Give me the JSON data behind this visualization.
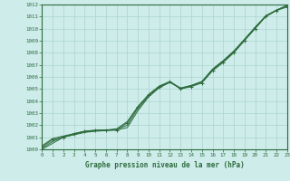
{
  "title": "Graphe pression niveau de la mer (hPa)",
  "background_color": "#cdecea",
  "grid_color": "#b0d8d4",
  "line_color": "#2d6b3c",
  "xmin": 0,
  "xmax": 23,
  "ymin": 1000,
  "ymax": 1012,
  "yticks": [
    1000,
    1001,
    1002,
    1003,
    1004,
    1005,
    1006,
    1007,
    1008,
    1009,
    1010,
    1011,
    1012
  ],
  "xticks": [
    0,
    1,
    2,
    3,
    4,
    5,
    6,
    7,
    8,
    9,
    10,
    11,
    12,
    13,
    14,
    15,
    16,
    17,
    18,
    19,
    20,
    21,
    22,
    23
  ],
  "series": [
    {
      "x": [
        0,
        1,
        2,
        3,
        4,
        5,
        6,
        7,
        8,
        9,
        10,
        11,
        12,
        13,
        14,
        15,
        16,
        17,
        18,
        19,
        20,
        21,
        22,
        23
      ],
      "y": [
        1000.2,
        1000.8,
        1001.0,
        1001.3,
        1001.5,
        1001.6,
        1001.6,
        1001.6,
        1002.2,
        1003.5,
        1004.5,
        1005.2,
        1005.6,
        1005.0,
        1005.2,
        1005.5,
        1006.5,
        1007.2,
        1008.0,
        1009.0,
        1010.0,
        1011.0,
        1011.5,
        1011.8
      ],
      "marker": "+"
    },
    {
      "x": [
        0,
        1,
        2,
        3,
        4,
        5,
        6,
        7,
        8,
        9,
        10,
        11,
        12,
        13,
        14,
        15,
        16,
        17,
        18,
        19,
        20,
        21,
        22,
        23
      ],
      "y": [
        1000.0,
        1000.5,
        1001.0,
        1001.2,
        1001.4,
        1001.5,
        1001.55,
        1001.6,
        1001.8,
        1003.2,
        1004.35,
        1005.1,
        1005.55,
        1005.05,
        1005.28,
        1005.6,
        1006.65,
        1007.35,
        1008.15,
        1009.1,
        1010.1,
        1011.05,
        1011.52,
        1011.95
      ],
      "marker": null
    },
    {
      "x": [
        0,
        1,
        2,
        3,
        4,
        5,
        6,
        7,
        8,
        9,
        10,
        11,
        12,
        13,
        14,
        15,
        16,
        17,
        18,
        19,
        20,
        21,
        22,
        23
      ],
      "y": [
        1000.3,
        1000.9,
        1001.1,
        1001.3,
        1001.5,
        1001.55,
        1001.6,
        1001.7,
        1002.3,
        1003.55,
        1004.55,
        1005.25,
        1005.62,
        1005.08,
        1005.3,
        1005.62,
        1006.62,
        1007.32,
        1008.12,
        1009.12,
        1010.12,
        1011.07,
        1011.55,
        1011.88
      ],
      "marker": null
    },
    {
      "x": [
        0,
        1,
        2,
        3,
        4,
        5,
        6,
        7,
        8,
        9,
        10,
        11,
        12,
        13,
        14,
        15,
        16,
        17,
        18,
        19,
        20,
        21,
        22,
        23
      ],
      "y": [
        1000.1,
        1000.65,
        1001.05,
        1001.25,
        1001.45,
        1001.53,
        1001.58,
        1001.65,
        1002.0,
        1003.4,
        1004.4,
        1005.15,
        1005.58,
        1005.03,
        1005.25,
        1005.58,
        1006.58,
        1007.28,
        1008.08,
        1009.08,
        1010.08,
        1011.03,
        1011.52,
        1011.92
      ],
      "marker": null
    }
  ]
}
